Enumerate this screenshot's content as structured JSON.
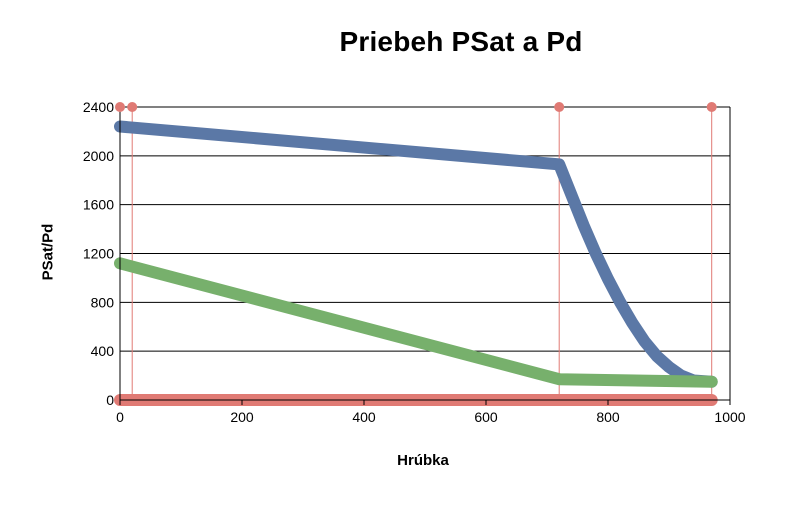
{
  "chart_data": {
    "type": "line",
    "title": "Priebeh PSat a Pd",
    "xlabel": "Hrúbka",
    "ylabel": "PSat/Pd",
    "xlim": [
      0,
      1000
    ],
    "ylim": [
      0,
      2400
    ],
    "x_ticks": [
      "0",
      "200",
      "400",
      "600",
      "800",
      "1000"
    ],
    "y_ticks": [
      "0",
      "400",
      "800",
      "1200",
      "1600",
      "2000",
      "2400"
    ],
    "grid": "horizontal",
    "legend": "none",
    "series": [
      {
        "color": "#5b78a6",
        "points": [
          [
            0,
            2240
          ],
          [
            720,
            1930
          ],
          [
            740,
            1680
          ],
          [
            760,
            1430
          ],
          [
            780,
            1200
          ],
          [
            800,
            990
          ],
          [
            820,
            800
          ],
          [
            840,
            630
          ],
          [
            860,
            480
          ],
          [
            880,
            360
          ],
          [
            900,
            270
          ],
          [
            920,
            200
          ],
          [
            940,
            160
          ],
          [
            970,
            150
          ]
        ]
      },
      {
        "color": "#77b06c",
        "points": [
          [
            0,
            1120
          ],
          [
            720,
            170
          ],
          [
            970,
            150
          ]
        ]
      },
      {
        "color": "#e07a74",
        "points": [
          [
            0,
            0
          ],
          [
            970,
            0
          ]
        ]
      }
    ],
    "markers": {
      "color": "#e07a74",
      "x": [
        0,
        20,
        720,
        970
      ],
      "y": 2400
    }
  }
}
